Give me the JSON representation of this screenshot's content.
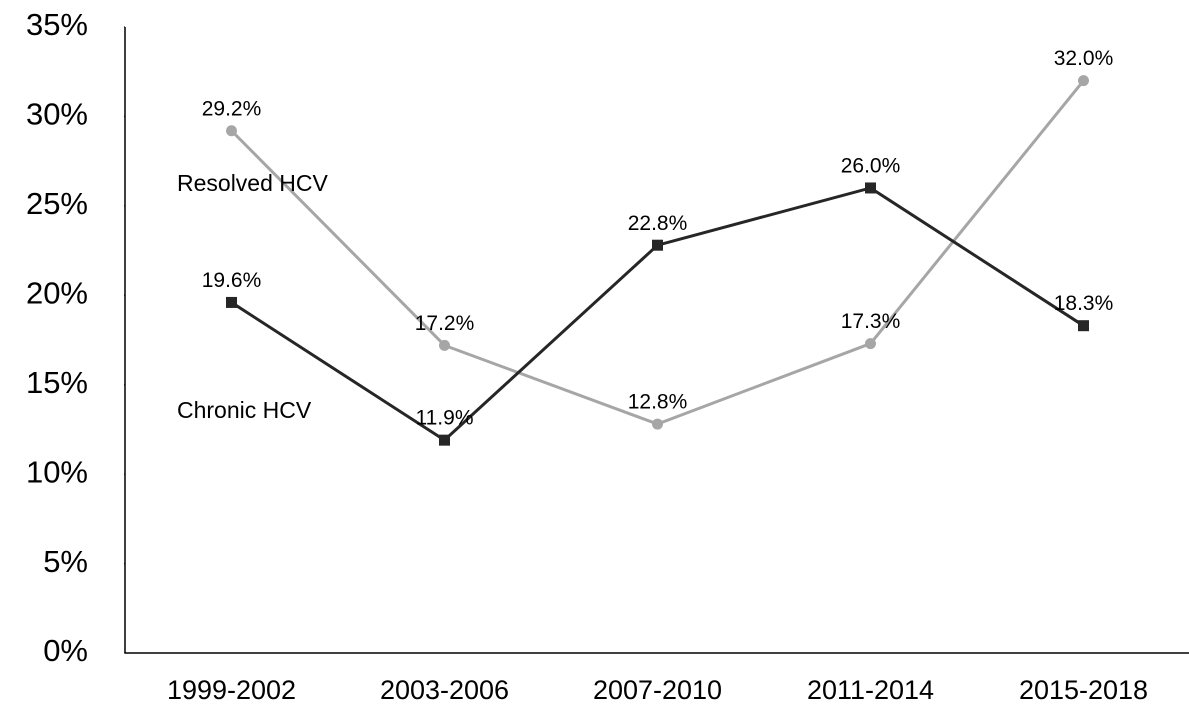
{
  "chart_data": {
    "type": "line",
    "categories": [
      "1999-2002",
      "2003-2006",
      "2007-2010",
      "2011-2014",
      "2015-2018"
    ],
    "series": [
      {
        "name": "Resolved HCV",
        "color": "#a6a6a6",
        "marker": "circle",
        "values": [
          29.2,
          17.2,
          12.8,
          17.3,
          32.0
        ],
        "value_labels": [
          "29.2%",
          "17.2%",
          "12.8%",
          "17.3%",
          "32.0%"
        ]
      },
      {
        "name": "Chronic HCV",
        "color": "#262626",
        "marker": "square",
        "values": [
          19.6,
          11.9,
          22.8,
          26.0,
          18.3
        ],
        "value_labels": [
          "19.6%",
          "11.9%",
          "22.8%",
          "26.0%",
          "18.3%"
        ]
      }
    ],
    "ylim": [
      0,
      35
    ],
    "yticks": [
      {
        "value": 0,
        "label": "0%"
      },
      {
        "value": 5,
        "label": "5%"
      },
      {
        "value": 10,
        "label": "10%"
      },
      {
        "value": 15,
        "label": "15%"
      },
      {
        "value": 20,
        "label": "20%"
      },
      {
        "value": 25,
        "label": "25%"
      },
      {
        "value": 30,
        "label": "30%"
      },
      {
        "value": 35,
        "label": "35%"
      }
    ],
    "grid": false
  }
}
